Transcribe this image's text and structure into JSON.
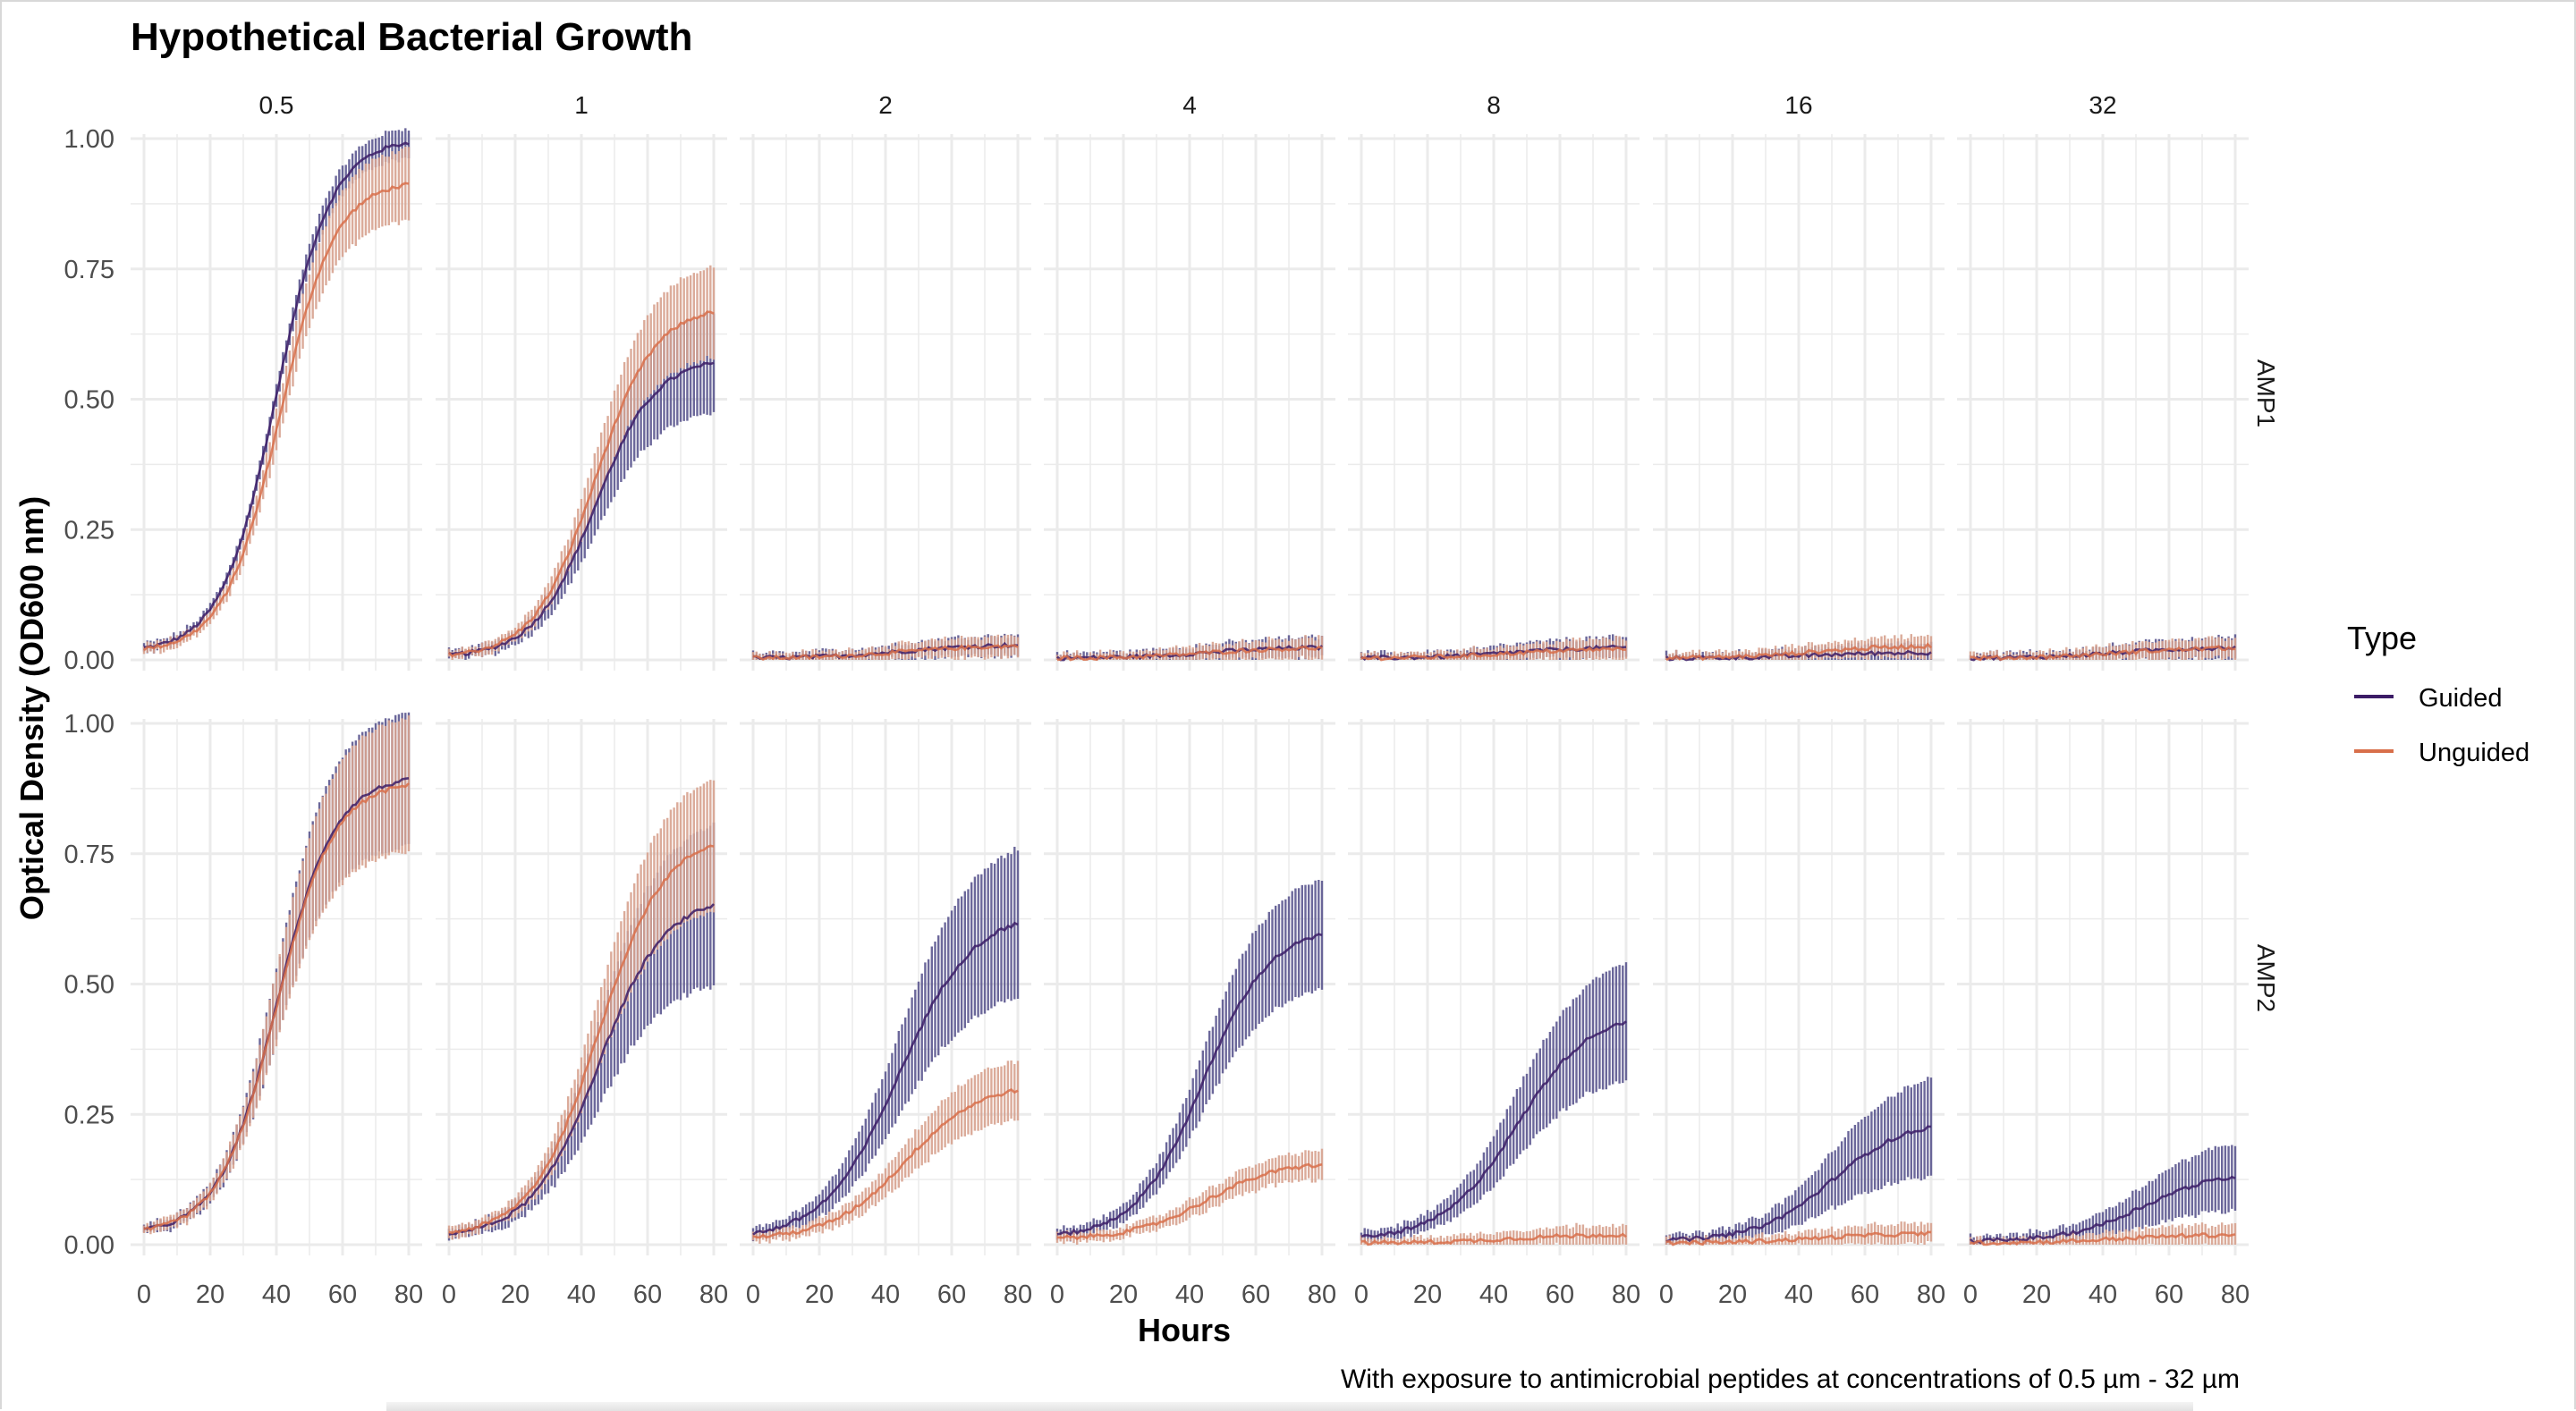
{
  "chart_data": {
    "type": "line",
    "title": "Hypothetical Bacterial Growth",
    "xlabel": "Hours",
    "ylabel": "Optical Density (OD600 nm)",
    "caption": "With exposure to antimicrobial peptides at concentrations of 0.5 µm - 32 µm",
    "xlim": [
      0,
      80
    ],
    "ylim": [
      0,
      1
    ],
    "x_ticks": [
      "0",
      "20",
      "40",
      "60",
      "80"
    ],
    "y_ticks": [
      "0.00",
      "0.25",
      "0.50",
      "0.75",
      "1.00"
    ],
    "grid": true,
    "error_bars": true,
    "columns": [
      "0.5",
      "1",
      "2",
      "4",
      "8",
      "16",
      "32"
    ],
    "rows": [
      "AMP1",
      "AMP2"
    ],
    "legend": {
      "title": "Type",
      "position": "right",
      "entries": [
        {
          "label": "Guided",
          "color": "#3b1c66"
        },
        {
          "label": "Unguided",
          "color": "#d86f4a"
        }
      ]
    },
    "series_style": {
      "Guided": {
        "line": "#3b1c66",
        "error_bar": "#5b568f"
      },
      "Unguided": {
        "line": "#d86f4a",
        "error_bar": "#d7a28f"
      },
      "overlap": "#a7bcd6"
    },
    "curve_model": "logistic; midpoint hour x0, steepness k, baseline OD b, plateau OD a",
    "panels": [
      {
        "row": "AMP1",
        "column": "0.5",
        "Guided": {
          "a": 1.0,
          "x0": 40,
          "k": 0.12,
          "b": 0.015,
          "err_plateau": 0.02
        },
        "Unguided": {
          "a": 0.92,
          "x0": 41,
          "k": 0.12,
          "b": 0.015,
          "err_plateau": 0.06
        }
      },
      {
        "row": "AMP1",
        "column": "1",
        "Guided": {
          "a": 0.58,
          "x0": 44,
          "k": 0.11,
          "b": 0.005,
          "err_plateau": 0.09
        },
        "Unguided": {
          "a": 0.68,
          "x0": 44,
          "k": 0.11,
          "b": 0.005,
          "err_plateau": 0.08
        }
      },
      {
        "row": "AMP1",
        "column": "2",
        "Guided": {
          "a": 0.03,
          "x0": 45,
          "k": 0.08,
          "b": 0.003,
          "err_plateau": 0.012
        },
        "Unguided": {
          "a": 0.028,
          "x0": 45,
          "k": 0.08,
          "b": 0.003,
          "err_plateau": 0.012
        }
      },
      {
        "row": "AMP1",
        "column": "4",
        "Guided": {
          "a": 0.025,
          "x0": 45,
          "k": 0.08,
          "b": 0.003,
          "err_plateau": 0.012
        },
        "Unguided": {
          "a": 0.024,
          "x0": 45,
          "k": 0.08,
          "b": 0.003,
          "err_plateau": 0.012
        }
      },
      {
        "row": "AMP1",
        "column": "8",
        "Guided": {
          "a": 0.025,
          "x0": 45,
          "k": 0.08,
          "b": 0.003,
          "err_plateau": 0.012
        },
        "Unguided": {
          "a": 0.022,
          "x0": 45,
          "k": 0.08,
          "b": 0.003,
          "err_plateau": 0.012
        }
      },
      {
        "row": "AMP1",
        "column": "16",
        "Guided": {
          "a": 0.015,
          "x0": 45,
          "k": 0.08,
          "b": 0.003,
          "err_plateau": 0.012
        },
        "Unguided": {
          "a": 0.028,
          "x0": 45,
          "k": 0.08,
          "b": 0.003,
          "err_plateau": 0.012
        }
      },
      {
        "row": "AMP1",
        "column": "32",
        "Guided": {
          "a": 0.025,
          "x0": 45,
          "k": 0.08,
          "b": 0.003,
          "err_plateau": 0.012
        },
        "Unguided": {
          "a": 0.024,
          "x0": 45,
          "k": 0.08,
          "b": 0.003,
          "err_plateau": 0.012
        }
      },
      {
        "row": "AMP2",
        "column": "0.5",
        "Guided": {
          "a": 0.9,
          "x0": 40,
          "k": 0.115,
          "b": 0.02,
          "err_plateau": 0.12
        },
        "Unguided": {
          "a": 0.89,
          "x0": 40,
          "k": 0.115,
          "b": 0.02,
          "err_plateau": 0.12
        }
      },
      {
        "row": "AMP2",
        "column": "1",
        "Guided": {
          "a": 0.67,
          "x0": 45,
          "k": 0.1,
          "b": 0.015,
          "err_plateau": 0.15
        },
        "Unguided": {
          "a": 0.79,
          "x0": 45,
          "k": 0.1,
          "b": 0.015,
          "err_plateau": 0.12
        }
      },
      {
        "row": "AMP2",
        "column": "2",
        "Guided": {
          "a": 0.64,
          "x0": 44,
          "k": 0.09,
          "b": 0.01,
          "err_plateau": 0.14
        },
        "Unguided": {
          "a": 0.31,
          "x0": 46,
          "k": 0.09,
          "b": 0.01,
          "err_plateau": 0.05
        }
      },
      {
        "row": "AMP2",
        "column": "4",
        "Guided": {
          "a": 0.61,
          "x0": 44,
          "k": 0.1,
          "b": 0.012,
          "err_plateau": 0.1
        },
        "Unguided": {
          "a": 0.16,
          "x0": 45,
          "k": 0.09,
          "b": 0.01,
          "err_plateau": 0.02
        }
      },
      {
        "row": "AMP2",
        "column": "8",
        "Guided": {
          "a": 0.45,
          "x0": 47,
          "k": 0.09,
          "b": 0.008,
          "err_plateau": 0.11
        },
        "Unguided": {
          "a": 0.02,
          "x0": 45,
          "k": 0.08,
          "b": 0.003,
          "err_plateau": 0.012
        }
      },
      {
        "row": "AMP2",
        "column": "16",
        "Guided": {
          "a": 0.24,
          "x0": 50,
          "k": 0.09,
          "b": 0.006,
          "err_plateau": 0.09
        },
        "Unguided": {
          "a": 0.022,
          "x0": 45,
          "k": 0.08,
          "b": 0.003,
          "err_plateau": 0.012
        }
      },
      {
        "row": "AMP2",
        "column": "32",
        "Guided": {
          "a": 0.14,
          "x0": 52,
          "k": 0.09,
          "b": 0.006,
          "err_plateau": 0.06
        },
        "Unguided": {
          "a": 0.02,
          "x0": 45,
          "k": 0.08,
          "b": 0.003,
          "err_plateau": 0.012
        }
      }
    ]
  }
}
